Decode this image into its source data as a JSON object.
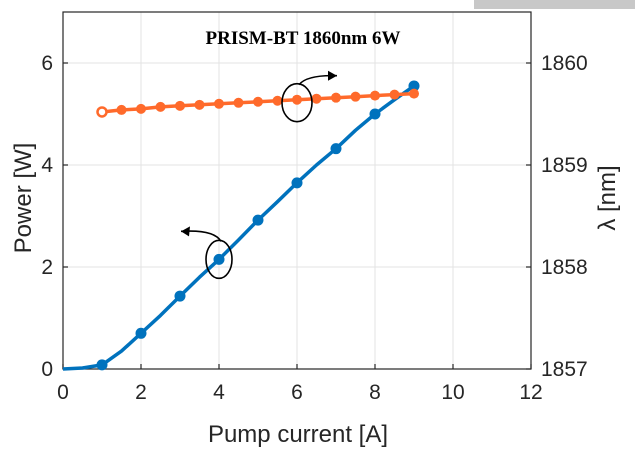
{
  "chart_data": {
    "type": "line",
    "title": "PRISM-BT 1860nm 6W",
    "xlabel": "Pump current [A]",
    "ylabel_left": "Power [W]",
    "ylabel_right": "λ [nm]",
    "xlim": [
      0,
      12
    ],
    "ylim_left": [
      0,
      7
    ],
    "ylim_right": [
      1857,
      1860.5
    ],
    "x_ticks": [
      "0",
      "2",
      "4",
      "6",
      "8",
      "10",
      "12"
    ],
    "y_ticks_left": [
      "0",
      "2",
      "4",
      "6"
    ],
    "y_ticks_right": [
      "1857",
      "1858",
      "1859",
      "1860"
    ],
    "grid": true,
    "series": [
      {
        "axis": "left",
        "color": "#0072BD",
        "curve": [
          [
            0,
            0
          ],
          [
            0.5,
            0.02
          ],
          [
            1,
            0.08
          ],
          [
            1.5,
            0.35
          ],
          [
            2,
            0.7
          ],
          [
            2.5,
            1.05
          ],
          [
            3,
            1.43
          ],
          [
            3.5,
            1.8
          ],
          [
            4,
            2.15
          ],
          [
            4.5,
            2.53
          ],
          [
            5,
            2.92
          ],
          [
            5.5,
            3.28
          ],
          [
            6,
            3.65
          ],
          [
            6.5,
            4.0
          ],
          [
            7,
            4.32
          ],
          [
            7.5,
            4.68
          ],
          [
            8,
            5.0
          ],
          [
            8.5,
            5.28
          ],
          [
            9,
            5.55
          ],
          [
            9.1,
            5.62
          ]
        ],
        "points": [
          [
            1,
            0.08
          ],
          [
            2,
            0.7
          ],
          [
            3,
            1.43
          ],
          [
            4,
            2.15
          ],
          [
            5,
            2.92
          ],
          [
            6,
            3.65
          ],
          [
            7,
            4.32
          ],
          [
            8,
            5.0
          ],
          [
            9,
            5.55
          ]
        ]
      },
      {
        "axis": "right",
        "color": "#FF6A2B",
        "points": [
          [
            1,
            1859.52
          ],
          [
            1.5,
            1859.54
          ],
          [
            2,
            1859.55
          ],
          [
            2.5,
            1859.57
          ],
          [
            3,
            1859.58
          ],
          [
            3.5,
            1859.59
          ],
          [
            4,
            1859.6
          ],
          [
            4.5,
            1859.61
          ],
          [
            5,
            1859.62
          ],
          [
            5.5,
            1859.63
          ],
          [
            6,
            1859.64
          ],
          [
            6.5,
            1859.65
          ],
          [
            7,
            1859.66
          ],
          [
            7.5,
            1859.67
          ],
          [
            8,
            1859.68
          ],
          [
            8.5,
            1859.69
          ],
          [
            9,
            1859.7
          ]
        ]
      }
    ],
    "annotations": [
      {
        "description": "ellipse on blue curve with arrow pointing left to Power axis"
      },
      {
        "description": "ellipse on orange curve with arrow pointing right to λ axis"
      }
    ]
  }
}
